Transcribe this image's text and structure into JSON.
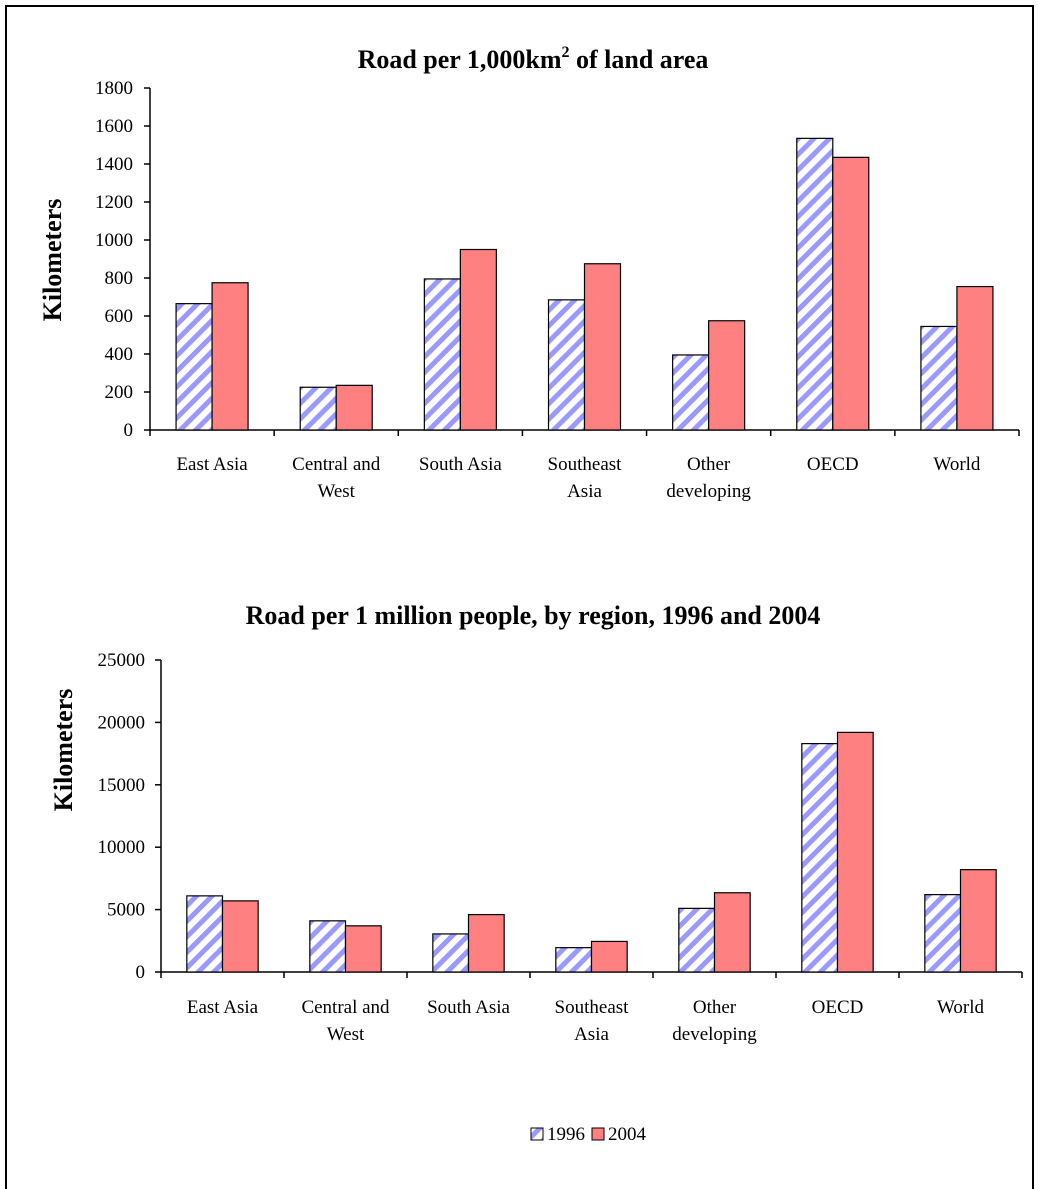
{
  "legend": {
    "labels": [
      "1996",
      "2004"
    ]
  },
  "colors": {
    "series_1996_stripe": "#9999ff",
    "series_2004_fill": "#ff8080",
    "axis": "#000000"
  },
  "chart_data": [
    {
      "type": "bar",
      "title": "Road per 1,000km² of land area",
      "title_main": "Road per 1,000km",
      "title_sup": "2",
      "title_tail": " of land area",
      "ylabel": "Kilometers",
      "xlabel": "",
      "ylim": [
        0,
        1800
      ],
      "yticks": [
        0,
        200,
        400,
        600,
        800,
        1000,
        1200,
        1400,
        1600,
        1800
      ],
      "categories": [
        [
          "East Asia"
        ],
        [
          "Central and",
          "West"
        ],
        [
          "South Asia"
        ],
        [
          "Southeast",
          "Asia"
        ],
        [
          "Other",
          "developing"
        ],
        [
          "OECD"
        ],
        [
          "World"
        ]
      ],
      "series": [
        {
          "name": "1996",
          "values": [
            665,
            225,
            795,
            685,
            395,
            1535,
            545
          ]
        },
        {
          "name": "2004",
          "values": [
            775,
            235,
            950,
            875,
            575,
            1435,
            755
          ]
        }
      ]
    },
    {
      "type": "bar",
      "title": "Road per 1 million people, by region, 1996 and 2004",
      "ylabel": "Kilometers",
      "xlabel": "",
      "ylim": [
        0,
        25000
      ],
      "yticks": [
        0,
        5000,
        10000,
        15000,
        20000,
        25000
      ],
      "categories": [
        [
          "East Asia"
        ],
        [
          "Central and",
          "West"
        ],
        [
          "South Asia"
        ],
        [
          "Southeast",
          "Asia"
        ],
        [
          "Other",
          "developing"
        ],
        [
          "OECD"
        ],
        [
          "World"
        ]
      ],
      "series": [
        {
          "name": "1996",
          "values": [
            6100,
            4100,
            3050,
            1950,
            5100,
            18300,
            6200
          ]
        },
        {
          "name": "2004",
          "values": [
            5700,
            3700,
            4600,
            2450,
            6350,
            19200,
            8200
          ]
        }
      ]
    }
  ]
}
